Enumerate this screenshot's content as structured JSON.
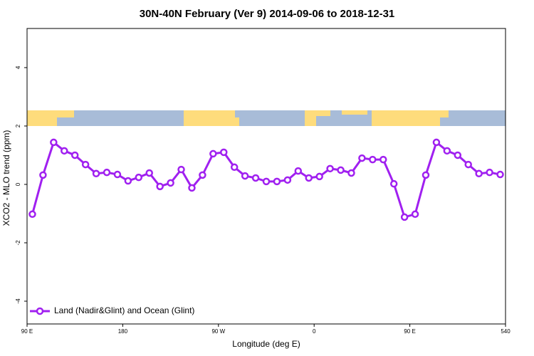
{
  "chart_data": {
    "type": "line",
    "title": "30N-40N February (Ver 9)   2014-09-06 to 2018-12-31",
    "xlabel": "Longitude (deg E)",
    "ylabel": "XCO2 - MLO trend (ppm)",
    "x": [
      95,
      105,
      115,
      125,
      135,
      145,
      155,
      165,
      175,
      185,
      195,
      205,
      215,
      225,
      235,
      245,
      255,
      265,
      275,
      285,
      295,
      305,
      315,
      325,
      335,
      345,
      355,
      365,
      375,
      385,
      395,
      405,
      415,
      425,
      435,
      445,
      455,
      465,
      475,
      485,
      495,
      505,
      515,
      525,
      535
    ],
    "series": [
      {
        "name": "Land (Nadir&Glint) and Ocean (Glint)",
        "color": "#a020f0",
        "values": [
          -1.02,
          0.32,
          1.44,
          1.15,
          1.0,
          0.68,
          0.37,
          0.41,
          0.34,
          0.12,
          0.24,
          0.39,
          -0.07,
          0.05,
          0.51,
          -0.12,
          0.32,
          1.05,
          1.1,
          0.59,
          0.29,
          0.22,
          0.1,
          0.1,
          0.15,
          0.46,
          0.22,
          0.27,
          0.54,
          0.49,
          0.39,
          0.9,
          0.85,
          0.85,
          0.02,
          -1.12,
          -1.02,
          0.32,
          1.44,
          1.15,
          1.0,
          0.68,
          0.37,
          0.41,
          0.34
        ]
      }
    ],
    "xlim": [
      90,
      540
    ],
    "xticks": [
      {
        "value": 90,
        "label": "90 E"
      },
      180,
      {
        "value": 270,
        "label": "90 W"
      },
      {
        "value": 360,
        "label": "0"
      },
      {
        "value": 450,
        "label": "90 E"
      },
      540
    ],
    "ylim": [
      -4.78,
      5.34
    ],
    "yticks": [
      -4,
      -2,
      0,
      2,
      4
    ],
    "legend": "bottom left"
  }
}
